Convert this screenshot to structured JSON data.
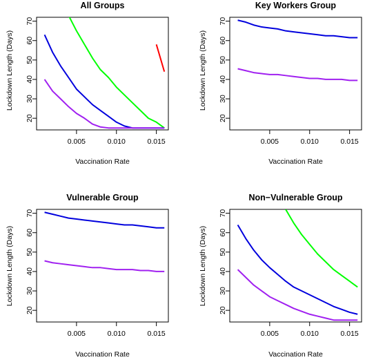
{
  "chart_data": [
    {
      "type": "line",
      "title": "All Groups",
      "xlabel": "Vaccination Rate",
      "ylabel": "Lockdown Length (Days)",
      "xlim": [
        0.0,
        0.0165
      ],
      "ylim": [
        14,
        72
      ],
      "xticks": [
        "0.005",
        "0.010",
        "0.015"
      ],
      "yticks": [
        "20",
        "30",
        "40",
        "50",
        "60",
        "70"
      ],
      "grid": false,
      "series": [
        {
          "color": "#ff0000",
          "x": [
            0.015,
            0.016
          ],
          "y": [
            58,
            44
          ]
        },
        {
          "color": "#00ff00",
          "x": [
            0.004,
            0.005,
            0.006,
            0.007,
            0.008,
            0.009,
            0.01,
            0.011,
            0.012,
            0.013,
            0.014,
            0.015,
            0.016
          ],
          "y": [
            73,
            65,
            58,
            51,
            45,
            41,
            36,
            32,
            28,
            24,
            20,
            18,
            15
          ]
        },
        {
          "color": "#0000dd",
          "x": [
            0.001,
            0.002,
            0.003,
            0.004,
            0.005,
            0.006,
            0.007,
            0.008,
            0.009,
            0.01,
            0.011,
            0.012,
            0.013,
            0.014,
            0.015,
            0.016
          ],
          "y": [
            63,
            54,
            47,
            41,
            35,
            31,
            27,
            24,
            21,
            18,
            16,
            15,
            15,
            15,
            15,
            15
          ]
        },
        {
          "color": "#a020f0",
          "x": [
            0.001,
            0.002,
            0.003,
            0.004,
            0.005,
            0.006,
            0.007,
            0.008,
            0.009,
            0.01,
            0.011,
            0.012,
            0.013,
            0.014,
            0.015,
            0.016
          ],
          "y": [
            40,
            34,
            30,
            26,
            22.5,
            20,
            17,
            15.5,
            15,
            15,
            15,
            15,
            15,
            15,
            15,
            15
          ]
        }
      ]
    },
    {
      "type": "line",
      "title": "Key Workers Group",
      "xlabel": "Vaccination Rate",
      "ylabel": "Lockdown Length (Days)",
      "xlim": [
        0.0,
        0.0165
      ],
      "ylim": [
        14,
        72
      ],
      "xticks": [
        "0.005",
        "0.010",
        "0.015"
      ],
      "yticks": [
        "20",
        "30",
        "40",
        "50",
        "60",
        "70"
      ],
      "grid": false,
      "series": [
        {
          "color": "#0000dd",
          "x": [
            0.001,
            0.002,
            0.003,
            0.004,
            0.005,
            0.006,
            0.007,
            0.008,
            0.009,
            0.01,
            0.011,
            0.012,
            0.013,
            0.014,
            0.015,
            0.016
          ],
          "y": [
            70.5,
            69.5,
            68,
            67,
            66.5,
            66,
            65,
            64.5,
            64,
            63.5,
            63,
            62.5,
            62.5,
            62,
            61.5,
            61.5
          ]
        },
        {
          "color": "#a020f0",
          "x": [
            0.001,
            0.002,
            0.003,
            0.004,
            0.005,
            0.006,
            0.007,
            0.008,
            0.009,
            0.01,
            0.011,
            0.012,
            0.013,
            0.014,
            0.015,
            0.016
          ],
          "y": [
            45.5,
            44.5,
            43.5,
            43,
            42.5,
            42.5,
            42,
            41.5,
            41,
            40.5,
            40.5,
            40,
            40,
            40,
            39.5,
            39.5
          ]
        }
      ]
    },
    {
      "type": "line",
      "title": "Vulnerable Group",
      "xlabel": "Vaccination Rate",
      "ylabel": "Lockdown Length (Days)",
      "xlim": [
        0.0,
        0.0165
      ],
      "ylim": [
        14,
        72
      ],
      "xticks": [
        "0.005",
        "0.010",
        "0.015"
      ],
      "yticks": [
        "20",
        "30",
        "40",
        "50",
        "60",
        "70"
      ],
      "grid": false,
      "series": [
        {
          "color": "#0000dd",
          "x": [
            0.001,
            0.002,
            0.003,
            0.004,
            0.005,
            0.006,
            0.007,
            0.008,
            0.009,
            0.01,
            0.011,
            0.012,
            0.013,
            0.014,
            0.015,
            0.016
          ],
          "y": [
            70.5,
            69.5,
            68.5,
            67.5,
            67,
            66.5,
            66,
            65.5,
            65,
            64.5,
            64,
            64,
            63.5,
            63,
            62.5,
            62.5
          ]
        },
        {
          "color": "#a020f0",
          "x": [
            0.001,
            0.002,
            0.003,
            0.004,
            0.005,
            0.006,
            0.007,
            0.008,
            0.009,
            0.01,
            0.011,
            0.012,
            0.013,
            0.014,
            0.015,
            0.016
          ],
          "y": [
            45.5,
            44.5,
            44,
            43.5,
            43,
            42.5,
            42,
            42,
            41.5,
            41,
            41,
            41,
            40.5,
            40.5,
            40,
            40
          ]
        }
      ]
    },
    {
      "type": "line",
      "title": "Non−Vulnerable Group",
      "xlabel": "Vaccination Rate",
      "ylabel": "Lockdown Length (Days)",
      "xlim": [
        0.0,
        0.0165
      ],
      "ylim": [
        14,
        72
      ],
      "xticks": [
        "0.005",
        "0.010",
        "0.015"
      ],
      "yticks": [
        "20",
        "30",
        "40",
        "50",
        "60",
        "70"
      ],
      "grid": false,
      "series": [
        {
          "color": "#00ff00",
          "x": [
            0.007,
            0.008,
            0.009,
            0.01,
            0.011,
            0.012,
            0.013,
            0.014,
            0.015,
            0.016
          ],
          "y": [
            72,
            65,
            59,
            54,
            49,
            45,
            41,
            38,
            35,
            32
          ]
        },
        {
          "color": "#0000dd",
          "x": [
            0.001,
            0.002,
            0.003,
            0.004,
            0.005,
            0.006,
            0.007,
            0.008,
            0.009,
            0.01,
            0.011,
            0.012,
            0.013,
            0.014,
            0.015,
            0.016
          ],
          "y": [
            64,
            57,
            51,
            46,
            42,
            38.5,
            35,
            32,
            30,
            28,
            26,
            24,
            22,
            20.5,
            19,
            18
          ]
        },
        {
          "color": "#a020f0",
          "x": [
            0.001,
            0.002,
            0.003,
            0.004,
            0.005,
            0.006,
            0.007,
            0.008,
            0.009,
            0.01,
            0.011,
            0.012,
            0.013,
            0.014,
            0.015,
            0.016
          ],
          "y": [
            41,
            37,
            33,
            30,
            27,
            25,
            23,
            21,
            19.5,
            18,
            17,
            16,
            15,
            15,
            15,
            15
          ]
        }
      ]
    }
  ]
}
